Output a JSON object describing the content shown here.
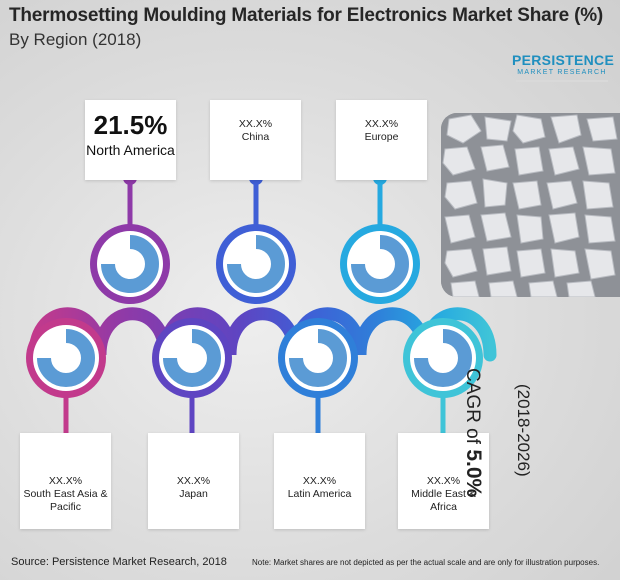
{
  "title": "Thermosetting Moulding Materials for Electronics Market Share (%)",
  "subtitle": "By Region (2018)",
  "logo": {
    "top": "PERSISTENCE",
    "bottom": "MARKET RESEARCH"
  },
  "chart_data": {
    "type": "donut-infographic",
    "regions": [
      {
        "name": "North America",
        "value_label": "21.5%",
        "color": "#8e3aa8"
      },
      {
        "name": "South East Asia & Pacific",
        "value_label": "XX.X%",
        "color": "#c23a8c"
      },
      {
        "name": "Japan",
        "value_label": "XX.X%",
        "color": "#5e45c2"
      },
      {
        "name": "China",
        "value_label": "XX.X%",
        "color": "#3f5fd6"
      },
      {
        "name": "Latin America",
        "value_label": "XX.X%",
        "color": "#2f7fd9"
      },
      {
        "name": "Europe",
        "value_label": "XX.X%",
        "color": "#26a9e0"
      },
      {
        "name": "Middle East & Africa",
        "value_label": "XX.X%",
        "color": "#3fc4d8"
      }
    ]
  },
  "cagr": {
    "label": "CAGR of",
    "value": "5.0%",
    "period": "(2018-2026)"
  },
  "source": "Source: Persistence Market Research, 2018",
  "note": "Note: Market shares are not depicted as per the actual scale and are only for illustration purposes."
}
